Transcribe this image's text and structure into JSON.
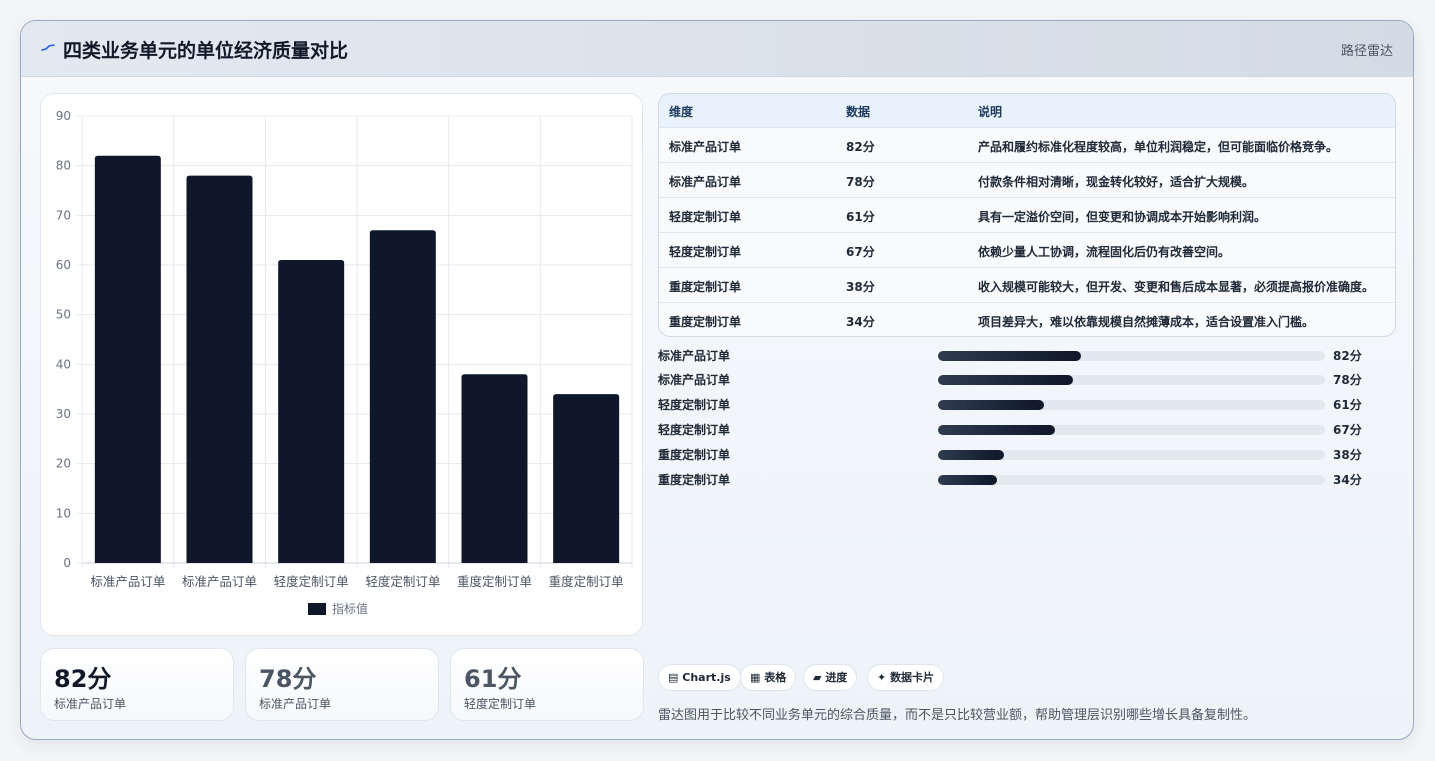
{
  "header": {
    "title": "四类业务单元的单位经济质量对比",
    "tag": "路径雷达"
  },
  "chart_data": {
    "type": "bar",
    "categories": [
      "标准产品订单",
      "标准产品订单",
      "轻度定制订单",
      "轻度定制订单",
      "重度定制订单",
      "重度定制订单"
    ],
    "series": [
      {
        "name": "指标值",
        "values": [
          82,
          78,
          61,
          67,
          38,
          34
        ]
      }
    ],
    "ylim": [
      0,
      90
    ],
    "yticks": [
      0,
      10,
      20,
      30,
      40,
      50,
      60,
      70,
      80,
      90
    ],
    "grid": true,
    "legend": "bottom",
    "bar_color": "#0f172a"
  },
  "stats": [
    {
      "value": "82分",
      "label": "标准产品订单",
      "color": "#111827"
    },
    {
      "value": "78分",
      "label": "标准产品订单",
      "color": "#4b5563"
    },
    {
      "value": "61分",
      "label": "轻度定制订单",
      "color": "#4b5563"
    }
  ],
  "table": {
    "headers": [
      "维度",
      "数据",
      "说明"
    ],
    "rows": [
      [
        "标准产品订单",
        "82分",
        "产品和履约标准化程度较高，单位利润稳定，但可能面临价格竞争。"
      ],
      [
        "标准产品订单",
        "78分",
        "付款条件相对清晰，现金转化较好，适合扩大规模。"
      ],
      [
        "轻度定制订单",
        "61分",
        "具有一定溢价空间，但变更和协调成本开始影响利润。"
      ],
      [
        "轻度定制订单",
        "67分",
        "依赖少量人工协调，流程固化后仍有改善空间。"
      ],
      [
        "重度定制订单",
        "38分",
        "收入规模可能较大，但开发、变更和售后成本显著，必须提高报价准确度。"
      ],
      [
        "重度定制订单",
        "34分",
        "项目差异大，难以依靠规模自然摊薄成本，适合设置准入门槛。"
      ]
    ]
  },
  "progress": [
    {
      "label": "标准产品订单",
      "value": "82分",
      "fraction": 0.37
    },
    {
      "label": "标准产品订单",
      "value": "78分",
      "fraction": 0.35
    },
    {
      "label": "轻度定制订单",
      "value": "61分",
      "fraction": 0.275
    },
    {
      "label": "轻度定制订单",
      "value": "67分",
      "fraction": 0.302
    },
    {
      "label": "重度定制订单",
      "value": "38分",
      "fraction": 0.171
    },
    {
      "label": "重度定制订单",
      "value": "34分",
      "fraction": 0.153
    }
  ],
  "chips": [
    {
      "icon": "chart-icon",
      "glyph": "▤",
      "label": "Chart.js"
    },
    {
      "icon": "table-icon",
      "glyph": "▦",
      "label": "表格"
    },
    {
      "icon": "progress-icon",
      "glyph": "▰",
      "label": "进度"
    },
    {
      "icon": "sparkle-icon",
      "glyph": "✦",
      "label": "数据卡片"
    }
  ],
  "note": "雷达图用于比较不同业务单元的综合质量，而不是只比较营业额，帮助管理层识别哪些增长具备复制性。"
}
